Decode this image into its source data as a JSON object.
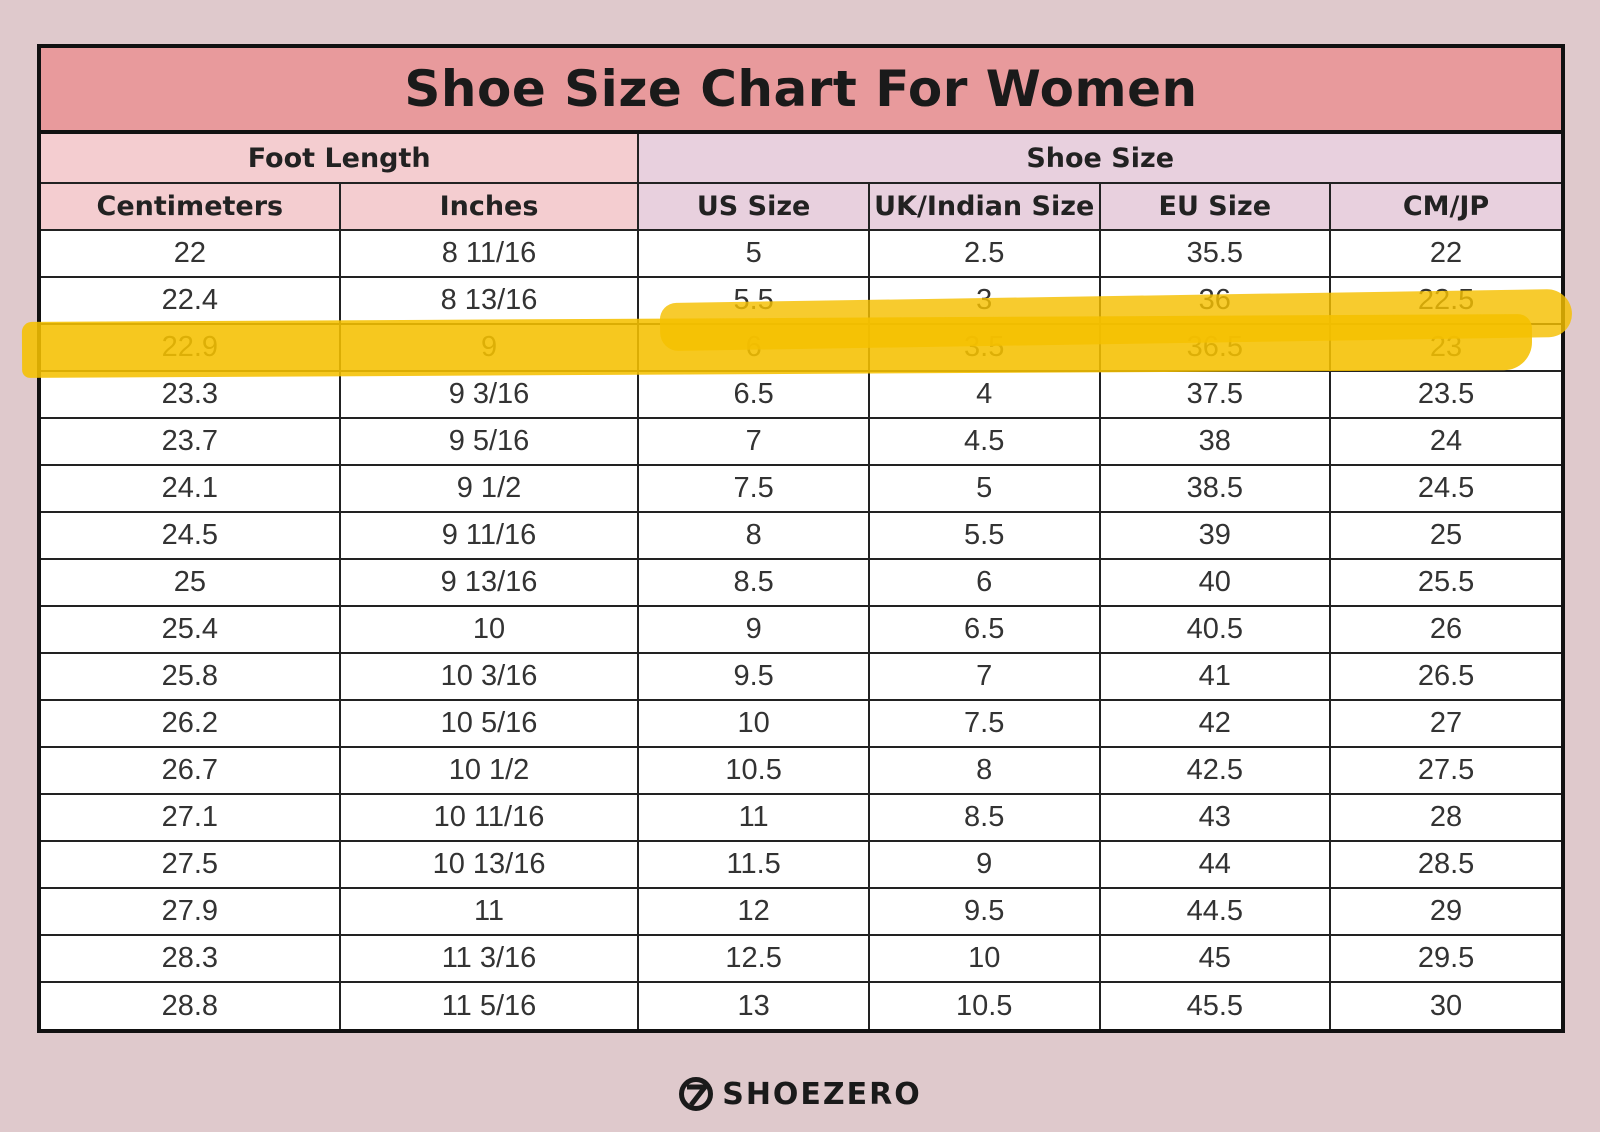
{
  "title": "Shoe Size Chart For Women",
  "groups": {
    "foot_length": "Foot Length",
    "shoe_size": "Shoe Size"
  },
  "columns": [
    "Centimeters",
    "Inches",
    "US Size",
    "UK/Indian Size",
    "EU Size",
    "CM/JP"
  ],
  "rows": [
    [
      "22",
      "8 11/16",
      "5",
      "2.5",
      "35.5",
      "22"
    ],
    [
      "22.4",
      "8 13/16",
      "5.5",
      "3",
      "36",
      "22.5"
    ],
    [
      "22.9",
      "9",
      "6",
      "3.5",
      "36.5",
      "23"
    ],
    [
      "23.3",
      "9 3/16",
      "6.5",
      "4",
      "37.5",
      "23.5"
    ],
    [
      "23.7",
      "9 5/16",
      "7",
      "4.5",
      "38",
      "24"
    ],
    [
      "24.1",
      "9 1/2",
      "7.5",
      "5",
      "38.5",
      "24.5"
    ],
    [
      "24.5",
      "9 11/16",
      "8",
      "5.5",
      "39",
      "25"
    ],
    [
      "25",
      "9 13/16",
      "8.5",
      "6",
      "40",
      "25.5"
    ],
    [
      "25.4",
      "10",
      "9",
      "6.5",
      "40.5",
      "26"
    ],
    [
      "25.8",
      "10 3/16",
      "9.5",
      "7",
      "41",
      "26.5"
    ],
    [
      "26.2",
      "10 5/16",
      "10",
      "7.5",
      "42",
      "27"
    ],
    [
      "26.7",
      "10 1/2",
      "10.5",
      "8",
      "42.5",
      "27.5"
    ],
    [
      "27.1",
      "10 11/16",
      "11",
      "8.5",
      "43",
      "28"
    ],
    [
      "27.5",
      "10 13/16",
      "11.5",
      "9",
      "44",
      "28.5"
    ],
    [
      "27.9",
      "11",
      "12",
      "9.5",
      "44.5",
      "29"
    ],
    [
      "28.3",
      "11 3/16",
      "12.5",
      "10",
      "45",
      "29.5"
    ],
    [
      "28.8",
      "11 5/16",
      "13",
      "10.5",
      "45.5",
      "30"
    ]
  ],
  "highlight_color": "#f5c000",
  "colors": {
    "background": "#dfc9cc",
    "title_bar": "#e89a9c",
    "foot_length_header": "#f4cdd0",
    "shoe_size_header": "#e8d0de"
  },
  "brand": {
    "name": "SHOEZERO",
    "icon": "shoezero-logo-icon"
  }
}
